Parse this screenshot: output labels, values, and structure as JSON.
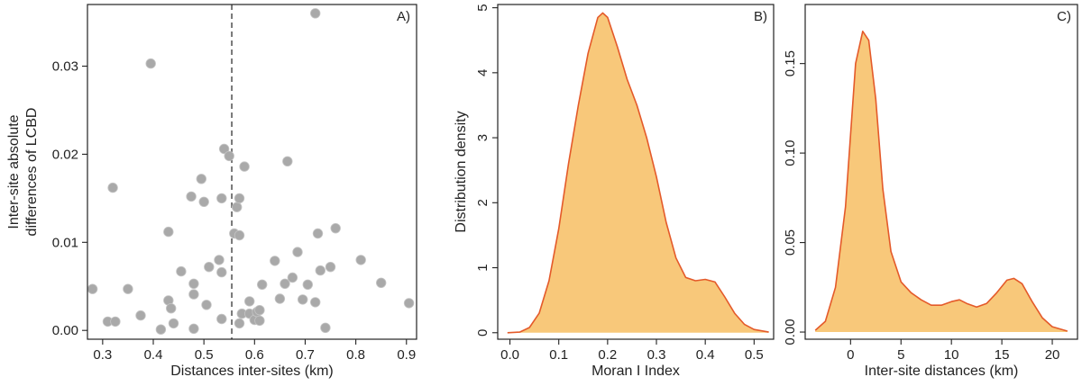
{
  "chart_data": [
    {
      "id": "A",
      "type": "scatter",
      "panel_label": "A)",
      "xlabel": "Distances inter-sites (km)",
      "ylabel": [
        "Inter-site absolute",
        "differences of LCBD"
      ],
      "xlim": [
        0.27,
        0.92
      ],
      "ylim": [
        -0.001,
        0.037
      ],
      "xticks": [
        0.3,
        0.4,
        0.5,
        0.6,
        0.7,
        0.8,
        0.9
      ],
      "xtick_labels": [
        "0.3",
        "0.4",
        "0.5",
        "0.6",
        "0.7",
        "0.8",
        "0.9"
      ],
      "yticks": [
        0.0,
        0.01,
        0.02,
        0.03
      ],
      "ytick_labels": [
        "0.00",
        "0.01",
        "0.02",
        "0.03"
      ],
      "threshold_x": 0.555,
      "point_color": "#a9a9a9",
      "points": [
        [
          0.28,
          0.0047
        ],
        [
          0.31,
          0.001
        ],
        [
          0.32,
          0.0162
        ],
        [
          0.325,
          0.001
        ],
        [
          0.35,
          0.0047
        ],
        [
          0.375,
          0.0017
        ],
        [
          0.395,
          0.0303
        ],
        [
          0.415,
          0.0001
        ],
        [
          0.43,
          0.0112
        ],
        [
          0.43,
          0.0034
        ],
        [
          0.435,
          0.0025
        ],
        [
          0.44,
          0.0008
        ],
        [
          0.455,
          0.0067
        ],
        [
          0.475,
          0.0152
        ],
        [
          0.48,
          0.0041
        ],
        [
          0.48,
          0.0053
        ],
        [
          0.48,
          0.0002
        ],
        [
          0.495,
          0.0172
        ],
        [
          0.5,
          0.0146
        ],
        [
          0.505,
          0.0029
        ],
        [
          0.51,
          0.0072
        ],
        [
          0.53,
          0.008
        ],
        [
          0.535,
          0.015
        ],
        [
          0.535,
          0.0066
        ],
        [
          0.535,
          0.0013
        ],
        [
          0.54,
          0.0206
        ],
        [
          0.55,
          0.0198
        ],
        [
          0.56,
          0.011
        ],
        [
          0.565,
          0.014
        ],
        [
          0.57,
          0.015
        ],
        [
          0.57,
          0.0108
        ],
        [
          0.57,
          0.0008
        ],
        [
          0.575,
          0.0019
        ],
        [
          0.58,
          0.0186
        ],
        [
          0.59,
          0.0033
        ],
        [
          0.59,
          0.0019
        ],
        [
          0.6,
          0.0012
        ],
        [
          0.605,
          0.0021
        ],
        [
          0.61,
          0.0023
        ],
        [
          0.61,
          0.0011
        ],
        [
          0.615,
          0.0052
        ],
        [
          0.64,
          0.0079
        ],
        [
          0.65,
          0.0036
        ],
        [
          0.66,
          0.0053
        ],
        [
          0.665,
          0.0192
        ],
        [
          0.675,
          0.006
        ],
        [
          0.685,
          0.0089
        ],
        [
          0.695,
          0.0035
        ],
        [
          0.705,
          0.0052
        ],
        [
          0.72,
          0.036
        ],
        [
          0.72,
          0.0032
        ],
        [
          0.725,
          0.011
        ],
        [
          0.73,
          0.0068
        ],
        [
          0.74,
          0.0003
        ],
        [
          0.75,
          0.0072
        ],
        [
          0.76,
          0.0116
        ],
        [
          0.81,
          0.008
        ],
        [
          0.85,
          0.0054
        ],
        [
          0.905,
          0.0031
        ]
      ]
    },
    {
      "id": "B",
      "type": "area",
      "panel_label": "B)",
      "xlabel": "Moran I Index",
      "ylabel": "Distribution density",
      "xlim": [
        -0.025,
        0.54
      ],
      "ylim": [
        -0.1,
        5.05
      ],
      "xticks": [
        0.0,
        0.1,
        0.2,
        0.3,
        0.4,
        0.5
      ],
      "xtick_labels": [
        "0.0",
        "0.1",
        "0.2",
        "0.3",
        "0.4",
        "0.5"
      ],
      "yticks": [
        0,
        1,
        2,
        3,
        4,
        5
      ],
      "ytick_labels": [
        "0",
        "1",
        "2",
        "3",
        "4",
        "5"
      ],
      "fill_color": "#f8c87a",
      "line_color": "#e45a2a",
      "curve": [
        [
          -0.005,
          0.0
        ],
        [
          0.02,
          0.01
        ],
        [
          0.04,
          0.08
        ],
        [
          0.06,
          0.3
        ],
        [
          0.08,
          0.8
        ],
        [
          0.1,
          1.6
        ],
        [
          0.12,
          2.6
        ],
        [
          0.14,
          3.5
        ],
        [
          0.16,
          4.3
        ],
        [
          0.18,
          4.85
        ],
        [
          0.19,
          4.92
        ],
        [
          0.2,
          4.85
        ],
        [
          0.22,
          4.4
        ],
        [
          0.24,
          3.9
        ],
        [
          0.26,
          3.5
        ],
        [
          0.28,
          3.0
        ],
        [
          0.3,
          2.4
        ],
        [
          0.32,
          1.7
        ],
        [
          0.34,
          1.15
        ],
        [
          0.36,
          0.85
        ],
        [
          0.38,
          0.8
        ],
        [
          0.4,
          0.82
        ],
        [
          0.42,
          0.78
        ],
        [
          0.44,
          0.55
        ],
        [
          0.46,
          0.3
        ],
        [
          0.48,
          0.13
        ],
        [
          0.5,
          0.05
        ],
        [
          0.53,
          0.01
        ]
      ]
    },
    {
      "id": "C",
      "type": "area",
      "panel_label": "C)",
      "xlabel": "Inter-site distances (km)",
      "ylabel": "",
      "xlim": [
        -4.5,
        22.5
      ],
      "ylim": [
        -0.004,
        0.183
      ],
      "xticks": [
        0,
        5,
        10,
        15,
        20
      ],
      "xtick_labels": [
        "0",
        "5",
        "10",
        "15",
        "20"
      ],
      "yticks": [
        0.0,
        0.05,
        0.1,
        0.15
      ],
      "ytick_labels": [
        "0.00",
        "0.05",
        "0.10",
        "0.15"
      ],
      "fill_color": "#f8c87a",
      "line_color": "#e45a2a",
      "curve": [
        [
          -3.5,
          0.001
        ],
        [
          -2.5,
          0.006
        ],
        [
          -1.5,
          0.025
        ],
        [
          -0.5,
          0.07
        ],
        [
          0.0,
          0.11
        ],
        [
          0.5,
          0.15
        ],
        [
          1.2,
          0.168
        ],
        [
          1.8,
          0.163
        ],
        [
          2.5,
          0.13
        ],
        [
          3.2,
          0.08
        ],
        [
          4.0,
          0.045
        ],
        [
          5.0,
          0.028
        ],
        [
          6.0,
          0.022
        ],
        [
          7.0,
          0.018
        ],
        [
          8.0,
          0.015
        ],
        [
          9.0,
          0.015
        ],
        [
          10.0,
          0.017
        ],
        [
          10.8,
          0.018
        ],
        [
          11.5,
          0.016
        ],
        [
          12.5,
          0.014
        ],
        [
          13.5,
          0.016
        ],
        [
          14.5,
          0.022
        ],
        [
          15.5,
          0.029
        ],
        [
          16.2,
          0.03
        ],
        [
          17.0,
          0.027
        ],
        [
          18.0,
          0.017
        ],
        [
          19.0,
          0.008
        ],
        [
          20.0,
          0.003
        ],
        [
          21.5,
          0.0005
        ]
      ]
    }
  ]
}
